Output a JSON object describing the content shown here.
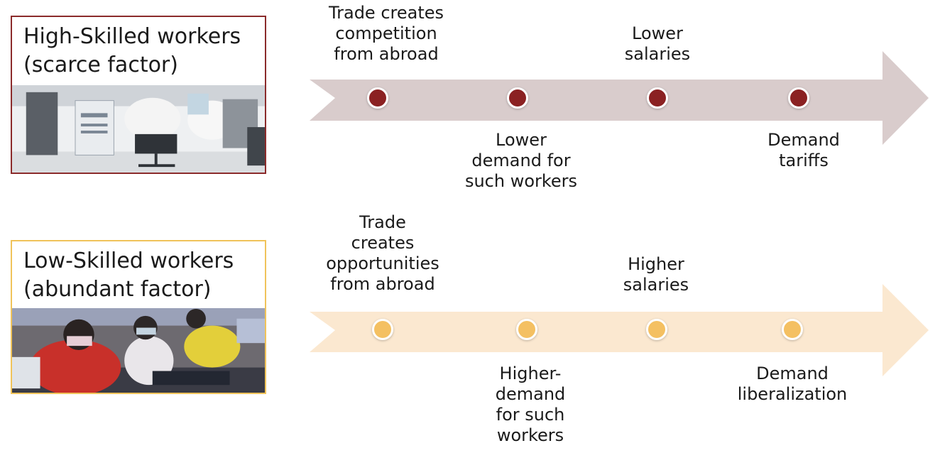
{
  "colors": {
    "high_accent": "#8b2b2b",
    "high_arrow": "#d9cccc",
    "low_accent": "#f0c35a",
    "low_arrow": "#fbe8d0"
  },
  "high": {
    "title": "High-Skilled workers\n(scarce factor)",
    "photo_icon": "lab-workers-photo",
    "steps": [
      "Trade creates\ncompetition\nfrom abroad",
      "Lower\ndemand for\nsuch workers",
      "Lower\nsalaries",
      "Demand\ntariffs"
    ]
  },
  "low": {
    "title": "Low-Skilled workers\n(abundant factor)",
    "photo_icon": "garment-factory-photo",
    "steps": [
      "Trade\ncreates\nopportunities\nfrom abroad",
      "Higher-\ndemand\nfor such\nworkers",
      "Higher\nsalaries",
      "Demand\nliberalization"
    ]
  }
}
